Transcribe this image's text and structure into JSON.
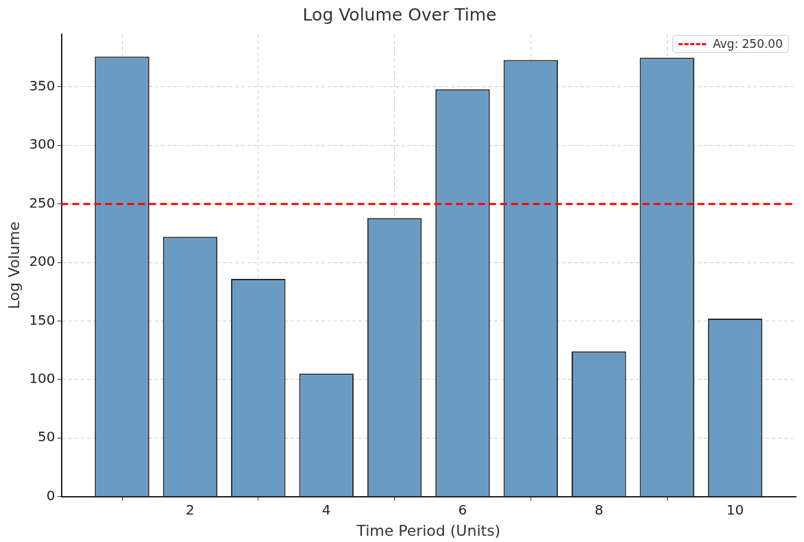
{
  "chart_data": {
    "type": "bar",
    "title": "Log Volume Over Time",
    "xlabel": "Time Period (Units)",
    "ylabel": "Log Volume",
    "x": [
      1,
      2,
      3,
      4,
      5,
      6,
      7,
      8,
      9,
      10
    ],
    "values": [
      376,
      222,
      186,
      105,
      238,
      348,
      373,
      124,
      375,
      152
    ],
    "color": "#6a9bc3",
    "xlim": [
      0.11,
      10.89
    ],
    "xticks": [
      2,
      4,
      6,
      8,
      10
    ],
    "ylim": [
      0,
      395
    ],
    "yticks": [
      0,
      50,
      100,
      150,
      200,
      250,
      300,
      350
    ],
    "grid": true,
    "legend": "top right",
    "ref_lines": [
      {
        "axis": "y",
        "value": 250,
        "label": "Avg: 250.00",
        "color": "#ff0000",
        "line_style": "dashed"
      }
    ]
  }
}
